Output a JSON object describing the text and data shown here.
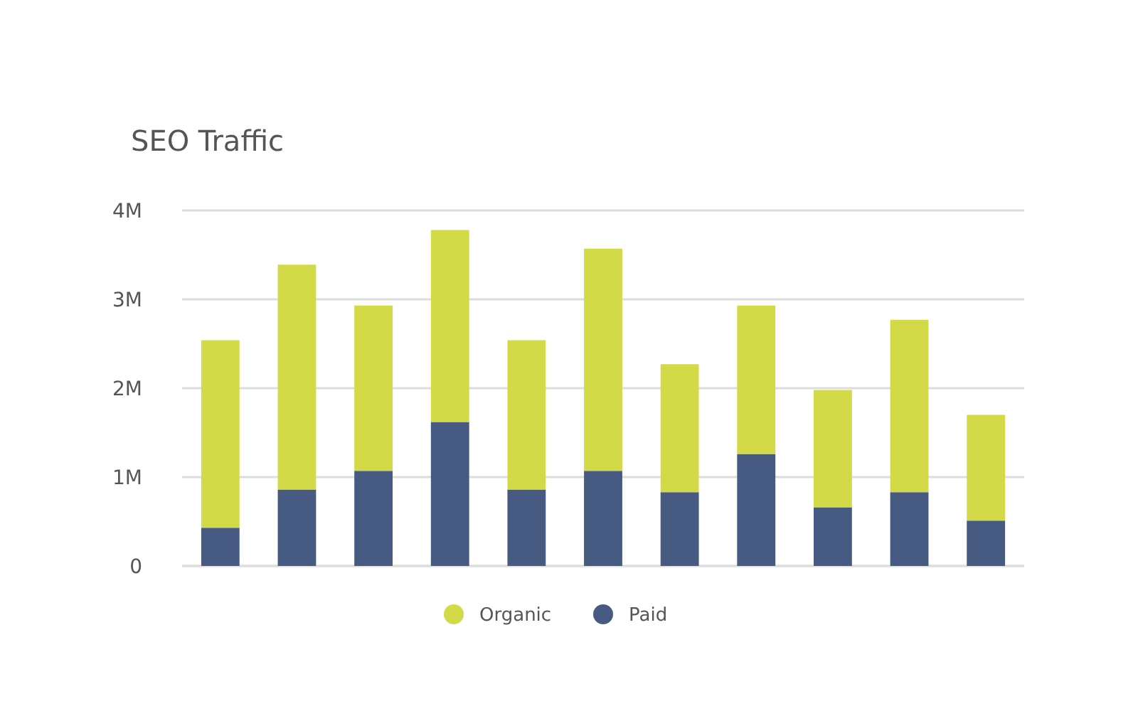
{
  "chart_data": {
    "type": "bar",
    "title": "SEO Traffic",
    "stacked": true,
    "grid": "y",
    "legend": "bottom",
    "categories": [
      null,
      null,
      null,
      null,
      null,
      null,
      null,
      null,
      null,
      null,
      null
    ],
    "series": [
      {
        "name": "Paid",
        "color": "#465a82",
        "values": [
          430000,
          860000,
          1070000,
          1620000,
          860000,
          1070000,
          830000,
          1260000,
          660000,
          830000,
          510000
        ]
      },
      {
        "name": "Organic",
        "color": "#d2da48",
        "values": [
          2110000,
          2530000,
          1860000,
          2160000,
          1680000,
          2500000,
          1440000,
          1670000,
          1320000,
          1940000,
          1190000
        ]
      }
    ],
    "ylim": [
      0,
      4000000
    ],
    "yticks": [
      {
        "value": 0,
        "label": "0"
      },
      {
        "value": 1000000,
        "label": "1M"
      },
      {
        "value": 2000000,
        "label": "2M"
      },
      {
        "value": 3000000,
        "label": "3M"
      },
      {
        "value": 4000000,
        "label": "4M"
      }
    ]
  }
}
